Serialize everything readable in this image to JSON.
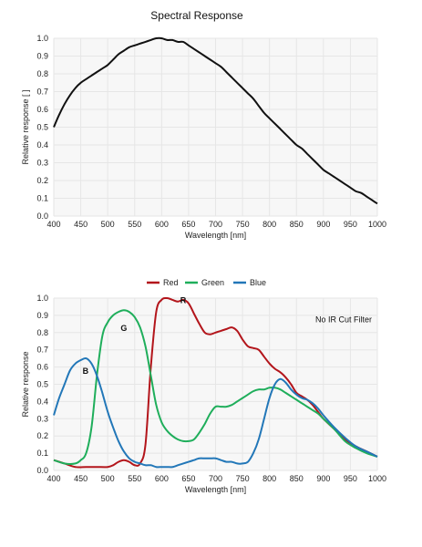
{
  "chart_data": [
    {
      "type": "line",
      "title": "Spectral Response",
      "xlabel": "Wavelength [nm]",
      "ylabel": "Relative response [ ]",
      "xlim": [
        400,
        1000
      ],
      "ylim": [
        0,
        1.0
      ],
      "grid": true,
      "x_ticks": [
        "400",
        "450",
        "500",
        "550",
        "600",
        "650",
        "700",
        "750",
        "800",
        "850",
        "900",
        "950",
        "1000"
      ],
      "y_ticks": [
        "0.0",
        "0.1",
        "0.2",
        "0.3",
        "0.4",
        "0.5",
        "0.6",
        "0.7",
        "0.8",
        "0.9",
        "1.0"
      ],
      "colors": {
        "line": "#111111"
      },
      "series": [
        {
          "x": [
            400,
            410,
            420,
            430,
            440,
            450,
            460,
            470,
            480,
            490,
            500,
            510,
            520,
            530,
            540,
            550,
            560,
            570,
            580,
            590,
            600,
            610,
            620,
            630,
            640,
            650,
            660,
            670,
            680,
            690,
            700,
            710,
            720,
            730,
            740,
            750,
            760,
            770,
            780,
            790,
            800,
            810,
            820,
            830,
            840,
            850,
            860,
            870,
            880,
            890,
            900,
            910,
            920,
            930,
            940,
            950,
            960,
            970,
            980,
            990,
            1000
          ],
          "values": [
            0.5,
            0.57,
            0.63,
            0.68,
            0.72,
            0.75,
            0.77,
            0.79,
            0.81,
            0.83,
            0.85,
            0.88,
            0.91,
            0.93,
            0.95,
            0.96,
            0.97,
            0.98,
            0.99,
            1.0,
            1.0,
            0.99,
            0.99,
            0.98,
            0.98,
            0.96,
            0.94,
            0.92,
            0.9,
            0.88,
            0.86,
            0.84,
            0.81,
            0.78,
            0.75,
            0.72,
            0.69,
            0.66,
            0.62,
            0.58,
            0.55,
            0.52,
            0.49,
            0.46,
            0.43,
            0.4,
            0.38,
            0.35,
            0.32,
            0.29,
            0.26,
            0.24,
            0.22,
            0.2,
            0.18,
            0.16,
            0.14,
            0.13,
            0.11,
            0.09,
            0.07
          ]
        }
      ]
    },
    {
      "type": "line",
      "title": "",
      "xlabel": "Wavelength [nm]",
      "ylabel": "Relative response",
      "xlim": [
        400,
        1000
      ],
      "ylim": [
        0,
        1.0
      ],
      "grid": true,
      "legend_position": "top-center",
      "annotation": "No IR Cut Filter",
      "x_ticks": [
        "400",
        "450",
        "500",
        "550",
        "600",
        "650",
        "700",
        "750",
        "800",
        "850",
        "900",
        "950",
        "1000"
      ],
      "y_ticks": [
        "0.0",
        "0.1",
        "0.2",
        "0.3",
        "0.4",
        "0.5",
        "0.6",
        "0.7",
        "0.8",
        "0.9",
        "1.0"
      ],
      "series": [
        {
          "name": "Red",
          "label": "R",
          "color": "#b3151b",
          "x": [
            400,
            420,
            440,
            460,
            480,
            500,
            510,
            520,
            530,
            540,
            550,
            560,
            570,
            580,
            590,
            600,
            610,
            620,
            630,
            640,
            650,
            660,
            670,
            680,
            690,
            700,
            710,
            720,
            730,
            740,
            750,
            760,
            770,
            780,
            790,
            800,
            810,
            820,
            830,
            840,
            850,
            860,
            870,
            880,
            890,
            900,
            920,
            940,
            960,
            980,
            1000
          ],
          "values": [
            0.06,
            0.04,
            0.02,
            0.02,
            0.02,
            0.02,
            0.03,
            0.05,
            0.06,
            0.05,
            0.03,
            0.04,
            0.15,
            0.6,
            0.92,
            0.99,
            1.0,
            0.99,
            0.98,
            0.99,
            0.97,
            0.91,
            0.85,
            0.8,
            0.79,
            0.8,
            0.81,
            0.82,
            0.83,
            0.81,
            0.76,
            0.72,
            0.71,
            0.7,
            0.66,
            0.62,
            0.59,
            0.57,
            0.54,
            0.5,
            0.45,
            0.43,
            0.41,
            0.38,
            0.34,
            0.3,
            0.24,
            0.18,
            0.14,
            0.11,
            0.08
          ]
        },
        {
          "name": "Green",
          "label": "G",
          "color": "#1fae5b",
          "x": [
            400,
            420,
            440,
            450,
            460,
            470,
            480,
            490,
            500,
            510,
            520,
            530,
            540,
            550,
            560,
            570,
            580,
            590,
            600,
            610,
            620,
            630,
            640,
            650,
            660,
            670,
            680,
            690,
            700,
            710,
            720,
            730,
            740,
            750,
            760,
            770,
            780,
            790,
            800,
            810,
            820,
            830,
            840,
            850,
            860,
            870,
            880,
            890,
            900,
            920,
            940,
            960,
            980,
            1000
          ],
          "values": [
            0.06,
            0.04,
            0.04,
            0.06,
            0.1,
            0.25,
            0.55,
            0.78,
            0.86,
            0.9,
            0.92,
            0.93,
            0.92,
            0.89,
            0.83,
            0.72,
            0.55,
            0.38,
            0.28,
            0.23,
            0.2,
            0.18,
            0.17,
            0.17,
            0.18,
            0.22,
            0.27,
            0.33,
            0.37,
            0.37,
            0.37,
            0.38,
            0.4,
            0.42,
            0.44,
            0.46,
            0.47,
            0.47,
            0.48,
            0.48,
            0.47,
            0.45,
            0.43,
            0.41,
            0.39,
            0.37,
            0.35,
            0.33,
            0.3,
            0.24,
            0.17,
            0.13,
            0.1,
            0.08
          ]
        },
        {
          "name": "Blue",
          "label": "B",
          "color": "#2277b8",
          "x": [
            400,
            410,
            420,
            430,
            440,
            450,
            460,
            470,
            480,
            490,
            500,
            510,
            520,
            530,
            540,
            550,
            560,
            570,
            580,
            590,
            600,
            610,
            620,
            630,
            640,
            650,
            660,
            670,
            680,
            690,
            700,
            710,
            720,
            730,
            740,
            750,
            760,
            770,
            780,
            790,
            800,
            810,
            820,
            830,
            840,
            850,
            860,
            870,
            880,
            890,
            900,
            920,
            940,
            960,
            980,
            1000
          ],
          "values": [
            0.32,
            0.42,
            0.5,
            0.58,
            0.62,
            0.64,
            0.65,
            0.62,
            0.55,
            0.45,
            0.34,
            0.25,
            0.17,
            0.11,
            0.07,
            0.05,
            0.04,
            0.03,
            0.03,
            0.02,
            0.02,
            0.02,
            0.02,
            0.03,
            0.04,
            0.05,
            0.06,
            0.07,
            0.07,
            0.07,
            0.07,
            0.06,
            0.05,
            0.05,
            0.04,
            0.04,
            0.05,
            0.1,
            0.18,
            0.3,
            0.42,
            0.5,
            0.53,
            0.51,
            0.47,
            0.44,
            0.42,
            0.41,
            0.39,
            0.36,
            0.32,
            0.25,
            0.19,
            0.14,
            0.11,
            0.08
          ]
        }
      ]
    }
  ]
}
